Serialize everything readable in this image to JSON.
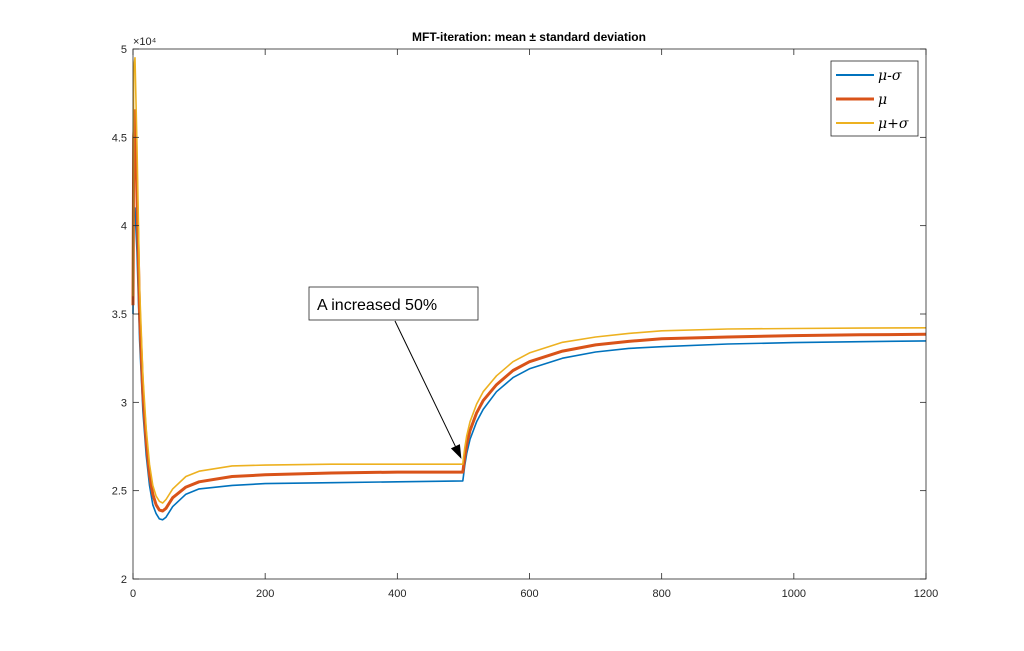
{
  "chart_data": {
    "type": "line",
    "title": "MFT-iteration: mean ± standard deviation",
    "xlabel": "",
    "ylabel": "",
    "xlim": [
      0,
      1200
    ],
    "ylim": [
      20000,
      50000
    ],
    "x_ticks": [
      0,
      200,
      400,
      600,
      800,
      1000,
      1200
    ],
    "x_tick_labels": [
      "0",
      "200",
      "400",
      "600",
      "800",
      "1000",
      "1200"
    ],
    "y_ticks": [
      20000,
      25000,
      30000,
      35000,
      40000,
      45000,
      50000
    ],
    "y_tick_labels": [
      "2",
      "2.5",
      "3",
      "3.5",
      "4",
      "4.5",
      "5"
    ],
    "y_exponent_label": "×10⁴",
    "grid": false,
    "legend_position": "top-right",
    "series": [
      {
        "name": "μ-σ",
        "color": "#0072BD",
        "x": [
          0,
          1,
          3,
          6,
          10,
          15,
          20,
          25,
          30,
          35,
          40,
          45,
          50,
          60,
          80,
          100,
          150,
          200,
          300,
          400,
          499,
          500,
          502,
          505,
          510,
          520,
          530,
          550,
          575,
          600,
          650,
          700,
          750,
          800,
          900,
          1000,
          1100,
          1200
        ],
        "y": [
          35000,
          40500,
          41000,
          38500,
          33500,
          29500,
          27000,
          25300,
          24200,
          23700,
          23400,
          23350,
          23500,
          24100,
          24800,
          25100,
          25300,
          25400,
          25450,
          25500,
          25550,
          25800,
          26400,
          27100,
          27900,
          28900,
          29600,
          30600,
          31400,
          31900,
          32500,
          32850,
          33050,
          33150,
          33300,
          33380,
          33430,
          33480
        ]
      },
      {
        "name": "μ",
        "color": "#D95319",
        "x": [
          0,
          1,
          3,
          6,
          10,
          15,
          20,
          25,
          30,
          35,
          40,
          45,
          50,
          60,
          80,
          100,
          150,
          200,
          300,
          400,
          499,
          500,
          502,
          505,
          510,
          520,
          530,
          550,
          575,
          600,
          650,
          700,
          750,
          800,
          900,
          1000,
          1100,
          1200
        ],
        "y": [
          35500,
          45000,
          46500,
          41500,
          35000,
          30500,
          27800,
          25900,
          24800,
          24200,
          23900,
          23850,
          24000,
          24600,
          25200,
          25500,
          25800,
          25900,
          26000,
          26050,
          26050,
          26300,
          26900,
          27600,
          28400,
          29400,
          30100,
          31000,
          31800,
          32300,
          32900,
          33250,
          33450,
          33600,
          33700,
          33780,
          33820,
          33850
        ]
      },
      {
        "name": "μ+σ",
        "color": "#EDB120",
        "x": [
          0,
          1,
          3,
          6,
          10,
          15,
          20,
          25,
          30,
          35,
          40,
          45,
          50,
          60,
          80,
          100,
          150,
          200,
          300,
          400,
          499,
          500,
          502,
          505,
          510,
          520,
          530,
          550,
          575,
          600,
          650,
          700,
          750,
          800,
          900,
          1000,
          1100,
          1200
        ],
        "y": [
          36000,
          49000,
          49500,
          44500,
          36500,
          31500,
          28500,
          26500,
          25300,
          24700,
          24400,
          24300,
          24500,
          25100,
          25800,
          26100,
          26400,
          26450,
          26500,
          26500,
          26500,
          26800,
          27400,
          28100,
          28900,
          29900,
          30600,
          31500,
          32300,
          32800,
          33400,
          33700,
          33900,
          34050,
          34150,
          34180,
          34200,
          34220
        ]
      }
    ],
    "annotation": {
      "text": "A increased 50%",
      "arrow_to": {
        "x": 497,
        "y": 26800
      }
    }
  }
}
